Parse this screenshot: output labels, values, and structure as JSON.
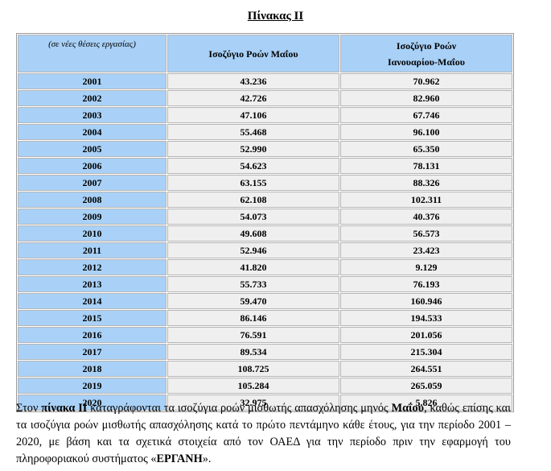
{
  "title": "Πίνακας ΙΙ",
  "table": {
    "header": {
      "unit": "(σε νέες θέσεις εργασίας)",
      "col1": [
        "Ισοζύγιο Ροών Μαΐου"
      ],
      "col2": [
        "Ισοζύγιο Ροών",
        "Ιανουαρίου-Μαΐου"
      ]
    },
    "rows": [
      [
        "2001",
        "43.236",
        "70.962"
      ],
      [
        "2002",
        "42.726",
        "82.960"
      ],
      [
        "2003",
        "47.106",
        "67.746"
      ],
      [
        "2004",
        "55.468",
        "96.100"
      ],
      [
        "2005",
        "52.990",
        "65.350"
      ],
      [
        "2006",
        "54.623",
        "78.131"
      ],
      [
        "2007",
        "63.155",
        "88.326"
      ],
      [
        "2008",
        "62.108",
        "102.311"
      ],
      [
        "2009",
        "54.073",
        "40.376"
      ],
      [
        "2010",
        "49.608",
        "56.573"
      ],
      [
        "2011",
        "52.946",
        "23.423"
      ],
      [
        "2012",
        "41.820",
        "9.129"
      ],
      [
        "2013",
        "55.733",
        "76.193"
      ],
      [
        "2014",
        "59.470",
        "160.946"
      ],
      [
        "2015",
        "86.146",
        "194.533"
      ],
      [
        "2016",
        "76.591",
        "201.056"
      ],
      [
        "2017",
        "89.534",
        "215.304"
      ],
      [
        "2018",
        "108.725",
        "264.551"
      ],
      [
        "2019",
        "105.284",
        "265.059"
      ],
      [
        "2020",
        "32.975",
        "5.826"
      ]
    ]
  },
  "paragraph": [
    {
      "text": "Στον ",
      "bold": false
    },
    {
      "text": "πίνακα ΙΙ",
      "bold": true
    },
    {
      "text": " καταγράφονται τα ισοζύγια ροών μισθωτής απασχόλησης μηνός ",
      "bold": false
    },
    {
      "text": "Μαΐου",
      "bold": true
    },
    {
      "text": ", καθώς επίσης και τα ισοζύγια ροών μισθωτής απασχόλησης κατά το πρώτο πεντάμηνο κάθε έτους, για την περίοδο 2001 – 2020, με βάση και τα σχετικά στοιχεία από τον ΟΑΕΔ για την περίοδο πριν την εφαρμογή του πληροφοριακού συστήματος «",
      "bold": false
    },
    {
      "text": "ΕΡΓΑΝΗ",
      "bold": true
    },
    {
      "text": "».",
      "bold": false
    }
  ]
}
